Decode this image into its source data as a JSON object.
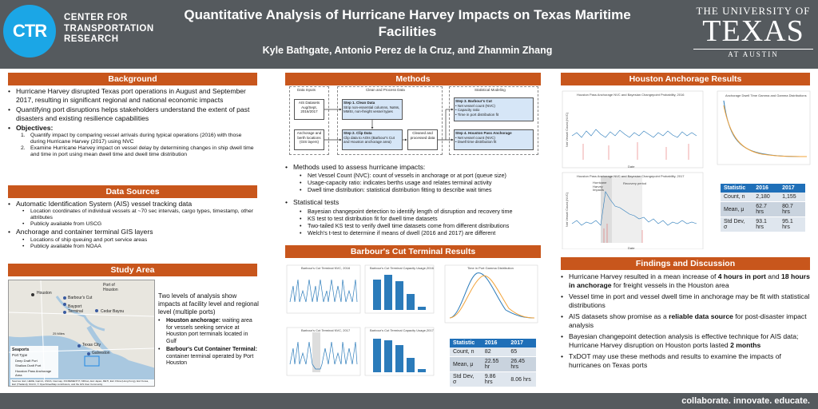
{
  "header": {
    "logo_text": "CTR",
    "center_name": [
      "CENTER FOR",
      "TRANSPORTATION",
      "RESEARCH"
    ],
    "title": "Quantitative Analysis of Hurricane Harvey Impacts on Texas Maritime Facilities",
    "authors": "Kyle Bathgate, Antonio Perez de la Cruz, and Zhanmin Zhang",
    "ut_top": "THE UNIVERSITY OF",
    "ut_mid": "TEXAS",
    "ut_bot": "AT AUSTIN"
  },
  "background": {
    "heading": "Background",
    "b1": "Hurricane Harvey disrupted Texas port operations in August and September 2017, resulting in significant regional and national economic impacts",
    "b2": "Quantifying port disruptions helps stakeholders understand the extent of past disasters and existing resilience capabilities",
    "b3": "Objectives:",
    "obj1": "Quantify impact by comparing vessel arrivals during typical operations (2016) with those during Hurricane Harvey (2017) using NVC",
    "obj2": "Examine Hurricane Harvey impact on vessel delay by determining changes in ship dwell time and time in port using mean dwell time and dwell time distribution"
  },
  "data_sources": {
    "heading": "Data Sources",
    "a": "Automatic Identification System (AIS) vessel tracking data",
    "a1": "Location coordinates of individual vessels at ~70 sec intervals, cargo types, timestamp, other attributes",
    "a2": "Publicly available from USCG",
    "b": "Anchorage and container terminal GIS layers",
    "b1": "Locations of ship queuing and port service areas",
    "b2": "Publicly available from NOAA"
  },
  "study_area": {
    "heading": "Study Area",
    "intro": "Two levels of analysis show impacts at facility level and regional level (multiple ports)",
    "h_anchor_label": "Houston anchorage:",
    "h_anchor_text": "waiting area for vessels seeking service at Houston port terminals located in Gulf",
    "barbour_label": "Barbour's Cut Container Terminal:",
    "barbour_text": "container terminal operated by Port Houston",
    "map_labels": [
      "Houston",
      "Port of Houston",
      "Barbour's Cut",
      "Bayport Terminal",
      "Cedar Bayou",
      "Texas City",
      "Galveston"
    ],
    "scale": "25 Miles",
    "legend_title": "Seaports",
    "legend_sub": "Port Type",
    "legend_items": [
      "Deep Draft Port",
      "Shallow Draft Port",
      "Houston Pass Anchorage Area"
    ],
    "source": "Sources: Esri, HERE, Garmin, USGS, Intermap, INCREMENT P, NRCan, Esri Japan, METI, Esri China (Hong Kong), Esri Korea, Esri (Thailand), NGCC, © OpenStreetMap contributors, and the GIS User Community"
  },
  "methods": {
    "heading": "Methods",
    "col_titles": [
      "Data Inputs",
      "Clean and Process Data",
      "Statistical Modeling"
    ],
    "inputs": [
      "AIS Datasets Aug/Sept, 2016/2017",
      "Anchorage and berth locations (GIS layers)"
    ],
    "step1_title": "Step 1. Clean Data",
    "step1_text": "Strip non-essential columns, NaNs, MMSI, non-freight vessel types",
    "step2_title": "Step 2. Clip Data",
    "step2_text": "Clip data to AOIs (Barbour's Cut and Houston anchorage area)",
    "cleaned": "Cleaned and processed data",
    "step3_title": "Step 3. Barbour's Cut",
    "step3_items": [
      "Net vessel count (NVC)",
      "Capacity ratio",
      "Time in port distribution fit"
    ],
    "step4_title": "Step 4. Houston Pass Anchorage",
    "step4_items": [
      "Net vessel count (NVC)",
      "Dwell time distribution fit"
    ],
    "m_intro": "Methods used to assess hurricane impacts:",
    "m1": "Net Vessel Count (NVC): count of vessels in anchorage or at port (queue size)",
    "m2": "Usage-capacity ratio: indicates berths usage and relates terminal activity",
    "m3": "Dwell time distribution: statistical distribution fitting to describe wait times",
    "t_intro": "Statistical tests",
    "t1": "Bayesian changepoint detection to identify length of disruption and recovery time",
    "t2": "KS test to test distribution fit for dwell time datasets",
    "t3": "Two-tailed KS test to verify dwell time datasets come from different distributions",
    "t4": "Welch's t-test to determine if means of dwell (2016 and 2017) are different"
  },
  "barbour": {
    "heading": "Barbour's Cut Terminal Results",
    "p1_title": "Barbour's Cut Terminal NVC, 2016",
    "p2_title": "Barbour's Cut Terminal Capacity Usage,2016",
    "p3_title": "Barbour's Cut Terminal NVC, 2017",
    "p4_title": "Barbour's Cut Terminal Capacity Usage,2017",
    "p5_title": "Time in Port Gamma Distribution",
    "table": {
      "headers": [
        "Statistic",
        "2016",
        "2017"
      ],
      "rows": [
        [
          "Count, n",
          "82",
          "65"
        ],
        [
          "Mean, μ",
          "22.55 hr",
          "26.45 hrs"
        ],
        [
          "Std Dev, σ",
          "9.86 hrs",
          "8.06 hrs"
        ]
      ]
    }
  },
  "houston": {
    "heading": "Houston Anchorage Results",
    "p1_title": "Houston Pass Anchorage NVC and Bayesian Changepoint Probability, 2016",
    "p2_title": "Houston Pass Anchorage NVC and Bayesian Changepoint Probability, 2017",
    "p3_title": "Anchorage Dwell Time Gamma and Gamma Distributions",
    "p2_anno1": "Hurricane Harvey Impacts",
    "p2_anno2": "Recovery period",
    "xlabel": "Date",
    "ylabel_left": "Net Vessel Count (NVC)",
    "ylabel_right": "Probability of changepoint",
    "table": {
      "headers": [
        "Statistic",
        "2016",
        "2017"
      ],
      "rows": [
        [
          "Count, n",
          "2,180",
          "1,155"
        ],
        [
          "Mean, μ",
          "62.7 hrs",
          "80.7 hrs"
        ],
        [
          "Std Dev, σ",
          "93.1 hrs",
          "95.1 hrs"
        ]
      ]
    }
  },
  "findings": {
    "heading": "Findings and Discussion",
    "f1a": "Hurricane Harvey resulted in a mean increase of ",
    "f1b": "4 hours in port",
    "f1c": " and ",
    "f1d": "18 hours in anchorage",
    "f1e": " for freight vessels in the Houston area",
    "f2": "Vessel time in port and vessel dwell time in anchorage may be fit with statistical distributions",
    "f3a": "AIS datasets show promise as a ",
    "f3b": "reliable data source",
    "f3c": " for post-disaster impact analysis",
    "f4a": "Bayesian changepoint detection analysis is effective technique for AIS data; Hurricane Harvey disruption on Houston ports lasted ",
    "f4b": "2 months",
    "f5": "TxDOT may use these methods and results to examine the impacts of hurricanes on Texas ports"
  },
  "footer": "collaborate. innovate. educate.",
  "colors": {
    "header_bg": "#555a5e",
    "section_orange": "#c8561c",
    "table_blue": "#1f6fb8",
    "ctr_blue": "#1ba6e6"
  }
}
